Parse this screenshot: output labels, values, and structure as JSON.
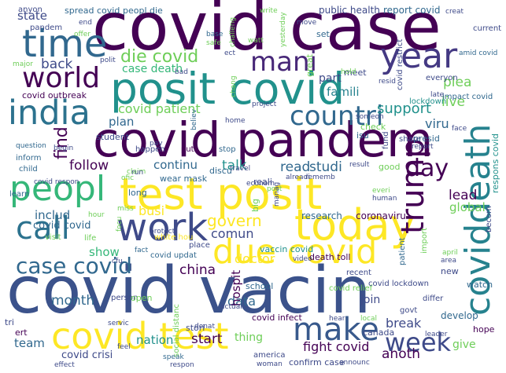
{
  "colors": {
    "background": "#ffffff",
    "palette": [
      "#440154",
      "#482878",
      "#3e4a89",
      "#31688e",
      "#26828e",
      "#1f9e89",
      "#35b779",
      "#6ece58",
      "#b5de2b",
      "#fde725"
    ]
  },
  "words": [
    {
      "text": "covid case"
    },
    {
      "text": "posit covid"
    },
    {
      "text": "covid pandem"
    },
    {
      "text": "test posit"
    },
    {
      "text": "covid vacin"
    },
    {
      "text": "time"
    },
    {
      "text": "mani"
    },
    {
      "text": "year"
    },
    {
      "text": "world"
    },
    {
      "text": "india"
    },
    {
      "text": "countri"
    },
    {
      "text": "peopl"
    },
    {
      "text": "today"
    },
    {
      "text": "work"
    },
    {
      "text": "call"
    },
    {
      "text": "due covid"
    },
    {
      "text": "case covid"
    },
    {
      "text": "covid test"
    },
    {
      "text": "make"
    },
    {
      "text": "week"
    },
    {
      "text": "trump"
    },
    {
      "text": "coviddeath"
    },
    {
      "text": "day"
    },
    {
      "text": "die covid"
    },
    {
      "text": "state"
    },
    {
      "text": "spread covid"
    },
    {
      "text": "public health"
    },
    {
      "text": "report covid"
    },
    {
      "text": "live"
    },
    {
      "text": "plea"
    },
    {
      "text": "back"
    },
    {
      "text": "part"
    },
    {
      "text": "famili"
    },
    {
      "text": "case death"
    },
    {
      "text": "covid outbreak"
    },
    {
      "text": "covid patient"
    },
    {
      "text": "support"
    },
    {
      "text": "plan"
    },
    {
      "text": "find"
    },
    {
      "text": "follow"
    },
    {
      "text": "continu"
    },
    {
      "text": "talk"
    },
    {
      "text": "read"
    },
    {
      "text": "studi"
    },
    {
      "text": "viru"
    },
    {
      "text": "govern"
    },
    {
      "text": "includ"
    },
    {
      "text": "covid covid"
    },
    {
      "text": "busi"
    },
    {
      "text": "show"
    },
    {
      "text": "comun"
    },
    {
      "text": "doctor"
    },
    {
      "text": "china"
    },
    {
      "text": "lead"
    },
    {
      "text": "global"
    },
    {
      "text": "month"
    },
    {
      "text": "data"
    },
    {
      "text": "hospit"
    },
    {
      "text": "break"
    },
    {
      "text": "nation"
    },
    {
      "text": "start"
    },
    {
      "text": "fight covid"
    },
    {
      "text": "anoth"
    },
    {
      "text": "team"
    },
    {
      "text": "covid crisi"
    },
    {
      "text": "thing"
    },
    {
      "text": "give"
    },
    {
      "text": "join"
    },
    {
      "text": "wear mask"
    },
    {
      "text": "white hou"
    },
    {
      "text": "research"
    },
    {
      "text": "coronaviru"
    },
    {
      "text": "covid infect"
    },
    {
      "text": "school"
    },
    {
      "text": "develop"
    },
    {
      "text": "hope"
    },
    {
      "text": "stori"
    },
    {
      "text": "person"
    },
    {
      "text": "open"
    },
    {
      "text": "watch"
    },
    {
      "text": "new"
    },
    {
      "text": "isu"
    },
    {
      "text": "lockdown"
    },
    {
      "text": "everyon"
    },
    {
      "text": "meet"
    },
    {
      "text": "great"
    },
    {
      "text": "current"
    },
    {
      "text": "amid covid"
    },
    {
      "text": "impact covid"
    },
    {
      "text": "respons covid"
    },
    {
      "text": "covid restrict"
    },
    {
      "text": "student"
    },
    {
      "text": "happen"
    },
    {
      "text": "put"
    },
    {
      "text": "stop"
    },
    {
      "text": "travel"
    },
    {
      "text": "reali"
    },
    {
      "text": "discu"
    },
    {
      "text": "learn"
    },
    {
      "text": "child"
    },
    {
      "text": "inform"
    },
    {
      "text": "question"
    },
    {
      "text": "begin"
    },
    {
      "text": "pandem"
    },
    {
      "text": "end"
    },
    {
      "text": "offer"
    },
    {
      "text": "anyon"
    },
    {
      "text": "peopl die"
    },
    {
      "text": "write"
    },
    {
      "text": "move"
    },
    {
      "text": "set"
    },
    {
      "text": "creat"
    },
    {
      "text": "major"
    },
    {
      "text": "polit"
    },
    {
      "text": "bad"
    },
    {
      "text": "safe"
    },
    {
      "text": "base"
    },
    {
      "text": "resid"
    },
    {
      "text": "hold"
    },
    {
      "text": "fund"
    },
    {
      "text": "presid"
    },
    {
      "text": "check"
    },
    {
      "text": "report"
    },
    {
      "text": "face"
    },
    {
      "text": "share"
    },
    {
      "text": "result"
    },
    {
      "text": "good"
    },
    {
      "text": "claim"
    },
    {
      "text": "alreadi"
    },
    {
      "text": "rememb"
    },
    {
      "text": "everi"
    },
    {
      "text": "human"
    },
    {
      "text": "becom"
    },
    {
      "text": "post"
    },
    {
      "text": "big"
    },
    {
      "text": "manag"
    },
    {
      "text": "long"
    },
    {
      "text": "protect"
    },
    {
      "text": "hour"
    },
    {
      "text": "miss"
    },
    {
      "text": "life"
    },
    {
      "text": "visit"
    },
    {
      "text": "place"
    },
    {
      "text": "vaccin covid"
    },
    {
      "text": "fact"
    },
    {
      "text": "covid updat"
    },
    {
      "text": "death toll"
    },
    {
      "text": "video"
    },
    {
      "text": "patient"
    },
    {
      "text": "import"
    },
    {
      "text": "april"
    },
    {
      "text": "area"
    },
    {
      "text": "recent"
    },
    {
      "text": "covid relief"
    },
    {
      "text": "covid lockdown"
    },
    {
      "text": "actual"
    },
    {
      "text": "social distanc"
    },
    {
      "text": "donat"
    },
    {
      "text": "hear"
    },
    {
      "text": "local"
    },
    {
      "text": "govt"
    },
    {
      "text": "differ"
    },
    {
      "text": "leader"
    },
    {
      "text": "canada"
    },
    {
      "text": "america"
    },
    {
      "text": "woman"
    },
    {
      "text": "confirm case"
    },
    {
      "text": "announc"
    },
    {
      "text": "respon"
    },
    {
      "text": "speak"
    },
    {
      "text": "effect"
    },
    {
      "text": "feel"
    },
    {
      "text": "tri"
    },
    {
      "text": "ert"
    },
    {
      "text": "servic"
    },
    {
      "text": "focu"
    },
    {
      "text": "cfu"
    },
    {
      "text": "run"
    },
    {
      "text": "pay"
    },
    {
      "text": "believ"
    },
    {
      "text": "home"
    },
    {
      "text": "econom"
    },
    {
      "text": "project"
    },
    {
      "text": "someon"
    },
    {
      "text": "late"
    },
    {
      "text": "chang"
    },
    {
      "text": "challeng"
    },
    {
      "text": "yesterday"
    },
    {
      "text": "ect"
    },
    {
      "text": "watt"
    },
    {
      "text": "covid respon"
    },
    {
      "text": "ofic"
    }
  ]
}
